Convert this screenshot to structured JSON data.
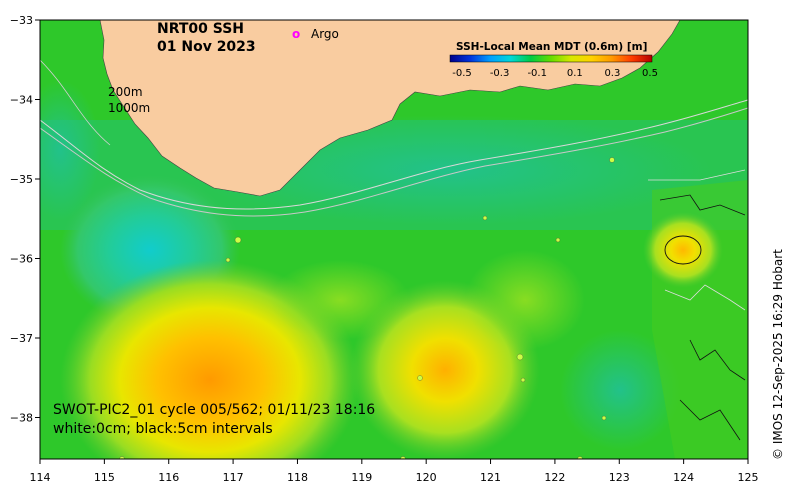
{
  "map": {
    "title": "NRT00 SSH",
    "date": "01 Nov 2023",
    "argo_symbol": "o",
    "argo_label": "Argo",
    "depth_labels": [
      "200m",
      "1000m"
    ],
    "colorbar": {
      "title": "SSH-Local Mean MDT (0.6m) [m]",
      "ticks": [
        "-0.5",
        "-0.3",
        "-0.1",
        "0.1",
        "0.3",
        "0.5"
      ],
      "colors": [
        "#00008b",
        "#0033dd",
        "#00a0ff",
        "#00d8d8",
        "#00cc44",
        "#66dd00",
        "#d8e800",
        "#ffd200",
        "#ff9a00",
        "#ff3c00",
        "#b40000"
      ]
    },
    "swot_line1": "SWOT-PIC2_01 cycle 005/562; 01/11/23 18:16",
    "swot_line2": "white:0cm; black:5cm intervals",
    "credit": "© IMOS 12-Sep-2025 16:29 Hobart",
    "x_ticks": [
      "114",
      "115",
      "116",
      "117",
      "118",
      "119",
      "120",
      "121",
      "122",
      "123",
      "124",
      "125"
    ],
    "y_ticks": [
      "−33",
      "−34",
      "−35",
      "−36",
      "−37",
      "−38"
    ],
    "colors": {
      "land": "#f9cca0",
      "ocean": "#33cc22",
      "argo": "#ff00ff",
      "contour_white": "#dddddd",
      "contour_black": "#111111"
    }
  }
}
